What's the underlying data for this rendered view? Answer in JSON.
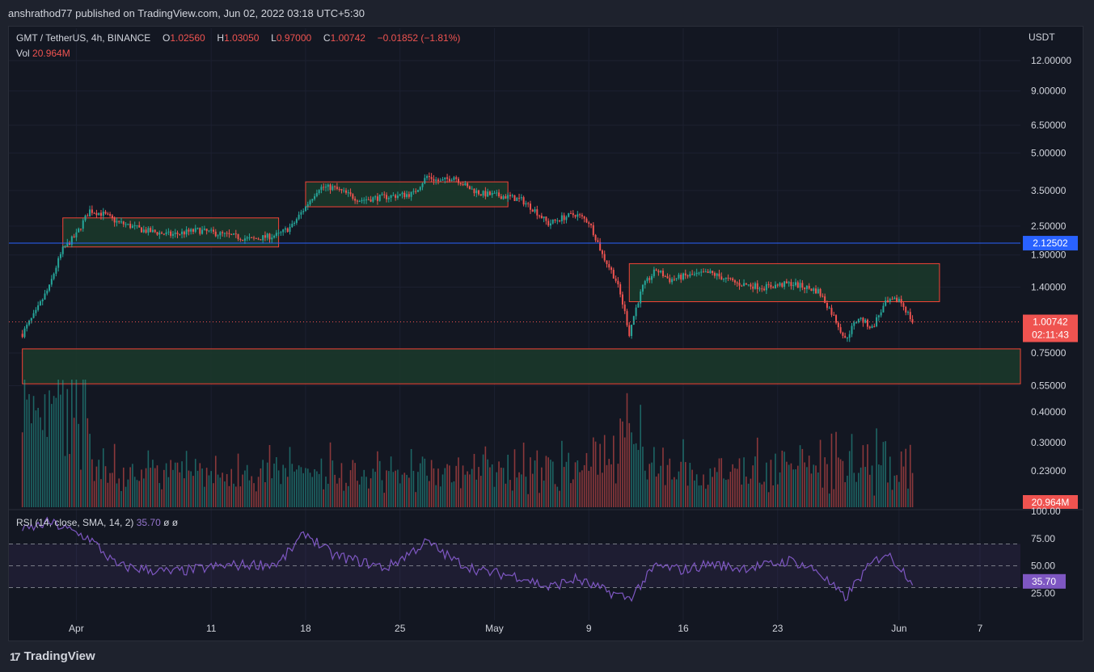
{
  "header": {
    "publisher_line": "anshrathod77 published on TradingView.com, Jun 02, 2022 03:18 UTC+5:30"
  },
  "legend": {
    "symbol": "GMT / TetherUS, 4h, BINANCE",
    "o_label": "O",
    "o": "1.02560",
    "h_label": "H",
    "h": "1.03050",
    "l_label": "L",
    "l": "0.97000",
    "c_label": "C",
    "c": "1.00742",
    "change": "−0.01852 (−1.81%)",
    "vol_label": "Vol",
    "vol": "20.964M"
  },
  "rsi_legend": {
    "label": "RSI (14, close, SMA, 14, 2)",
    "value": "35.70",
    "extra": "ø ø"
  },
  "footer": {
    "brand": "TradingView",
    "logo_glyph": "17"
  },
  "colors": {
    "background": "#131722",
    "up": "#26a69a",
    "down": "#ef5350",
    "hline": "#2962ff",
    "rsi": "#7e57c2",
    "zone_fill": "#1b3a2a",
    "zone_border": "#f44336"
  },
  "chart_data": {
    "type": "candlestick",
    "symbol": "GMT / TetherUS",
    "interval": "4h",
    "exchange": "BINANCE",
    "y_axis": {
      "currency": "USDT",
      "scale": "log",
      "tick_labels": [
        "12.00000",
        "9.00000",
        "6.50000",
        "5.00000",
        "3.50000",
        "2.50000",
        "1.90000",
        "1.40000",
        "0.75000",
        "0.55000",
        "0.40000",
        "0.30000",
        "0.23000"
      ]
    },
    "x_axis": {
      "tick_labels": [
        "Apr",
        "11",
        "18",
        "25",
        "May",
        "9",
        "16",
        "23",
        "Jun",
        "7"
      ]
    },
    "last_price": "1.00742",
    "countdown": "02:11:43",
    "horizontal_line": {
      "price": 2.12502,
      "label": "2.12502"
    },
    "zones": [
      {
        "from_date": "2022-03-31",
        "to_date": "2022-04-16",
        "low": 2.05,
        "high": 2.7
      },
      {
        "from_date": "2022-04-18",
        "to_date": "2022-05-03",
        "low": 3.0,
        "high": 3.8
      },
      {
        "from_date": "2022-05-12",
        "to_date": "2022-06-04",
        "low": 1.22,
        "high": 1.75
      },
      {
        "from_date": "2022-03-28",
        "to_date": "2022-06-10",
        "low": 0.56,
        "high": 0.78
      }
    ],
    "price_path": [
      [
        "2022-03-28",
        0.9
      ],
      [
        "2022-03-29",
        1.1
      ],
      [
        "2022-03-30",
        1.4
      ],
      [
        "2022-03-31",
        2.0
      ],
      [
        "2022-04-01",
        2.3
      ],
      [
        "2022-04-02",
        2.9
      ],
      [
        "2022-04-03",
        2.8
      ],
      [
        "2022-04-04",
        2.6
      ],
      [
        "2022-04-06",
        2.4
      ],
      [
        "2022-04-08",
        2.3
      ],
      [
        "2022-04-10",
        2.4
      ],
      [
        "2022-04-12",
        2.3
      ],
      [
        "2022-04-14",
        2.2
      ],
      [
        "2022-04-16",
        2.3
      ],
      [
        "2022-04-17",
        2.5
      ],
      [
        "2022-04-18",
        3.0
      ],
      [
        "2022-04-19",
        3.6
      ],
      [
        "2022-04-20",
        3.6
      ],
      [
        "2022-04-22",
        3.2
      ],
      [
        "2022-04-24",
        3.3
      ],
      [
        "2022-04-26",
        3.4
      ],
      [
        "2022-04-27",
        4.0
      ],
      [
        "2022-04-28",
        3.8
      ],
      [
        "2022-04-29",
        4.0
      ],
      [
        "2022-04-30",
        3.6
      ],
      [
        "2022-05-01",
        3.4
      ],
      [
        "2022-05-03",
        3.3
      ],
      [
        "2022-05-04",
        3.2
      ],
      [
        "2022-05-05",
        2.9
      ],
      [
        "2022-05-06",
        2.55
      ],
      [
        "2022-05-07",
        2.7
      ],
      [
        "2022-05-08",
        2.8
      ],
      [
        "2022-05-09",
        2.6
      ],
      [
        "2022-05-10",
        1.9
      ],
      [
        "2022-05-11",
        1.5
      ],
      [
        "2022-05-12",
        0.9
      ],
      [
        "2022-05-13",
        1.4
      ],
      [
        "2022-05-14",
        1.65
      ],
      [
        "2022-05-15",
        1.5
      ],
      [
        "2022-05-16",
        1.55
      ],
      [
        "2022-05-18",
        1.6
      ],
      [
        "2022-05-20",
        1.45
      ],
      [
        "2022-05-22",
        1.4
      ],
      [
        "2022-05-24",
        1.45
      ],
      [
        "2022-05-26",
        1.35
      ],
      [
        "2022-05-27",
        1.1
      ],
      [
        "2022-05-28",
        0.85
      ],
      [
        "2022-05-29",
        1.05
      ],
      [
        "2022-05-30",
        0.95
      ],
      [
        "2022-05-31",
        1.2
      ],
      [
        "2022-06-01",
        1.25
      ],
      [
        "2022-06-02",
        1.00742
      ]
    ],
    "volume": {
      "last": "20.964M"
    },
    "rsi": {
      "label": "RSI (14, close, SMA, 14, 2)",
      "value": 35.7,
      "levels": [
        75,
        50,
        25
      ],
      "tick_labels": [
        "100.00",
        "75.00",
        "50.00",
        "25.00"
      ],
      "band": [
        30,
        70
      ],
      "path": [
        [
          "2022-03-28",
          82
        ],
        [
          "2022-03-30",
          90
        ],
        [
          "2022-04-02",
          75
        ],
        [
          "2022-04-04",
          50
        ],
        [
          "2022-04-08",
          44
        ],
        [
          "2022-04-12",
          50
        ],
        [
          "2022-04-16",
          52
        ],
        [
          "2022-04-18",
          80
        ],
        [
          "2022-04-20",
          60
        ],
        [
          "2022-04-24",
          48
        ],
        [
          "2022-04-27",
          72
        ],
        [
          "2022-04-29",
          55
        ],
        [
          "2022-05-01",
          45
        ],
        [
          "2022-05-04",
          40
        ],
        [
          "2022-05-06",
          30
        ],
        [
          "2022-05-08",
          38
        ],
        [
          "2022-05-10",
          28
        ],
        [
          "2022-05-12",
          20
        ],
        [
          "2022-05-14",
          50
        ],
        [
          "2022-05-16",
          46
        ],
        [
          "2022-05-18",
          52
        ],
        [
          "2022-05-20",
          48
        ],
        [
          "2022-05-22",
          50
        ],
        [
          "2022-05-24",
          55
        ],
        [
          "2022-05-26",
          45
        ],
        [
          "2022-05-27",
          32
        ],
        [
          "2022-05-28",
          20
        ],
        [
          "2022-05-29",
          38
        ],
        [
          "2022-05-30",
          52
        ],
        [
          "2022-05-31",
          62
        ],
        [
          "2022-06-01",
          50
        ],
        [
          "2022-06-02",
          35.7
        ]
      ]
    }
  }
}
